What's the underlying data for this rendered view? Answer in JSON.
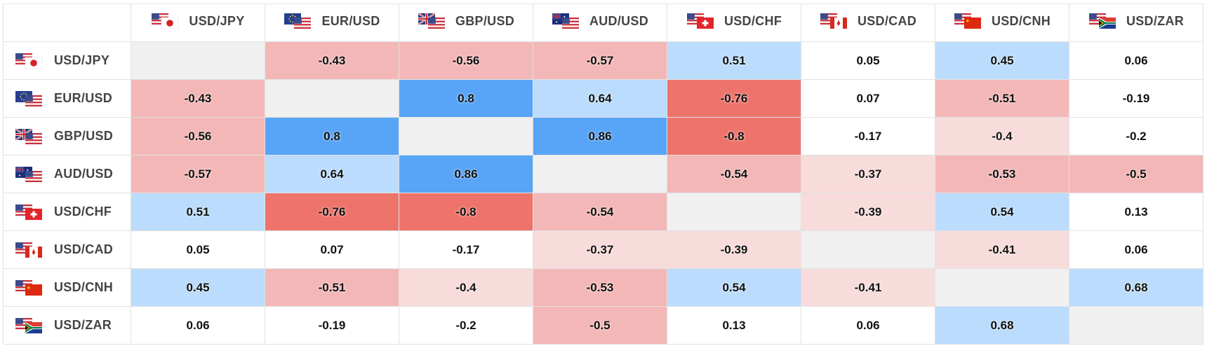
{
  "chart_data": {
    "type": "heatmap",
    "pairs": [
      "USD/JPY",
      "EUR/USD",
      "GBP/USD",
      "AUD/USD",
      "USD/CHF",
      "USD/CAD",
      "USD/CNH",
      "USD/ZAR"
    ],
    "flags": [
      [
        "us",
        "jp"
      ],
      [
        "eu",
        "us"
      ],
      [
        "gb",
        "us"
      ],
      [
        "au",
        "us"
      ],
      [
        "us",
        "ch"
      ],
      [
        "us",
        "ca"
      ],
      [
        "us",
        "cn"
      ],
      [
        "us",
        "za"
      ]
    ],
    "matrix": [
      [
        null,
        -0.43,
        -0.56,
        -0.57,
        0.51,
        0.05,
        0.45,
        0.06
      ],
      [
        -0.43,
        null,
        0.8,
        0.64,
        -0.76,
        0.07,
        -0.51,
        -0.19
      ],
      [
        -0.56,
        0.8,
        null,
        0.86,
        -0.8,
        -0.17,
        -0.4,
        -0.2
      ],
      [
        -0.57,
        0.64,
        0.86,
        null,
        -0.54,
        -0.37,
        -0.53,
        -0.5
      ],
      [
        0.51,
        -0.76,
        -0.8,
        -0.54,
        null,
        -0.39,
        0.54,
        0.13
      ],
      [
        0.05,
        0.07,
        -0.17,
        -0.37,
        -0.39,
        null,
        -0.41,
        0.06
      ],
      [
        0.45,
        -0.51,
        -0.4,
        -0.53,
        0.54,
        -0.41,
        null,
        0.68
      ],
      [
        0.06,
        -0.19,
        -0.2,
        -0.5,
        0.13,
        0.06,
        0.68,
        null
      ]
    ],
    "colors": {
      "diagonal": "#f0f0f0",
      "neutral": "#ffffff",
      "pos_light": "#bbdcfc",
      "pos_strong": "#58a4f7",
      "neg_faint": "#f8dbdb",
      "neg_light": "#f4b7b7",
      "neg_strong": "#ee746b"
    }
  }
}
